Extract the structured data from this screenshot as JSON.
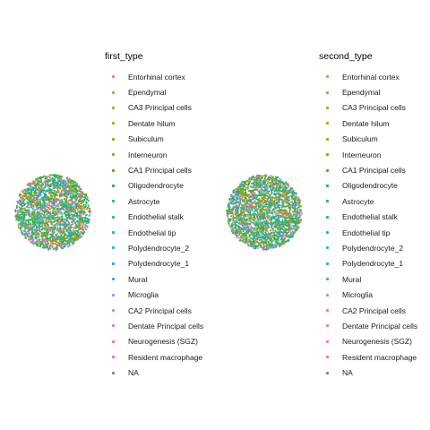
{
  "chart_data": [
    {
      "type": "scatter",
      "panel": "first",
      "legend_title": "first_type",
      "spot_count": 2600,
      "colors_by_category": true
    },
    {
      "type": "scatter",
      "panel": "second",
      "legend_title": "second_type",
      "spot_count": 2600,
      "colors_by_category": true
    }
  ],
  "categories": [
    {
      "label": "Entorhinal cortex",
      "color": "#F8766D",
      "weight": 0.05
    },
    {
      "label": "Ependymal",
      "color": "#EA8331",
      "weight": 0.04
    },
    {
      "label": "CA3 Principal cells",
      "color": "#D89000",
      "weight": 0.06
    },
    {
      "label": "Dentate hilum",
      "color": "#C09B00",
      "weight": 0.05
    },
    {
      "label": "Subiculum",
      "color": "#A3A500",
      "weight": 0.06
    },
    {
      "label": "Interneuron",
      "color": "#7CAE00",
      "weight": 0.08
    },
    {
      "label": "CA1 Principal cells",
      "color": "#39B600",
      "weight": 0.09
    },
    {
      "label": "Oligodendrocyte",
      "color": "#00BB4E",
      "weight": 0.09
    },
    {
      "label": "Astrocyte",
      "color": "#00BF7D",
      "weight": 0.09
    },
    {
      "label": "Endothelial stalk",
      "color": "#00C1A3",
      "weight": 0.06
    },
    {
      "label": "Endothelial tip",
      "color": "#00BFC4",
      "weight": 0.05
    },
    {
      "label": "Polydendrocyte_2",
      "color": "#00BAE0",
      "weight": 0.04
    },
    {
      "label": "Polydendrocyte_1",
      "color": "#00B0F6",
      "weight": 0.04
    },
    {
      "label": "Mural",
      "color": "#35A2FF",
      "weight": 0.04
    },
    {
      "label": "Microglia",
      "color": "#9590FF",
      "weight": 0.05
    },
    {
      "label": "CA2 Principal cells",
      "color": "#C77CFF",
      "weight": 0.03
    },
    {
      "label": "Dentate Principal cells",
      "color": "#E76BF3",
      "weight": 0.04
    },
    {
      "label": "Neurogenesis (SGZ)",
      "color": "#FA62DB",
      "weight": 0.02
    },
    {
      "label": "Resident macrophage",
      "color": "#FF62BC",
      "weight": 0.02
    },
    {
      "label": "NA",
      "color": "#7F7F7F",
      "weight": 0.01
    }
  ]
}
